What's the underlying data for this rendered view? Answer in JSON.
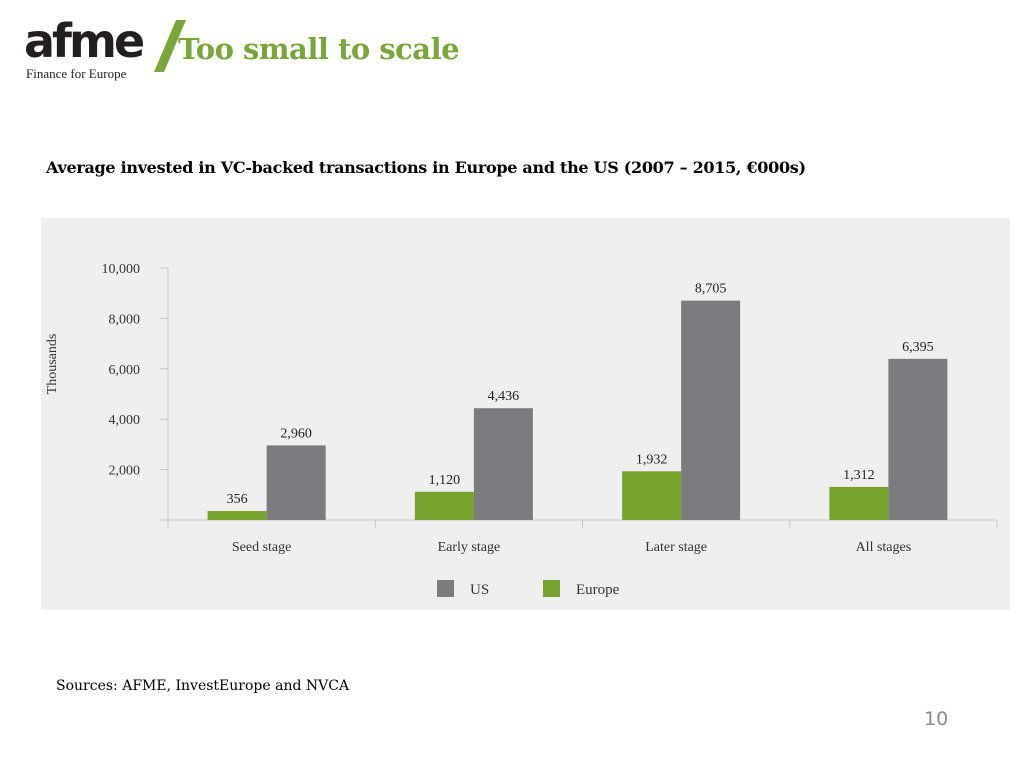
{
  "header": {
    "logo_word": "afme",
    "logo_tagline": "Finance for Europe",
    "title": "Too small to scale"
  },
  "subtitle": "Average invested in VC-backed transactions in Europe and the US (2007 – 2015, €000s)",
  "footer": {
    "source": "Sources: AFME, InvestEurope and NVCA",
    "page_number": "10"
  },
  "colors": {
    "brand_green": "#7aa639",
    "europe_bar": "#77a22d",
    "us_bar": "#7b7c80",
    "logo_dark": "#231f20"
  },
  "chart_data": {
    "type": "bar",
    "title": "Average invested in VC-backed transactions in Europe and the US (2007 – 2015, €000s)",
    "ylabel": "Thousands",
    "xlabel": "",
    "ylim": [
      0,
      10000
    ],
    "yticks": [
      0,
      2000,
      4000,
      6000,
      8000,
      10000
    ],
    "ytick_labels": [
      "",
      "2,000",
      "4,000",
      "6,000",
      "8,000",
      "10,000"
    ],
    "categories": [
      "Seed stage",
      "Early stage",
      "Later stage",
      "All stages"
    ],
    "series": [
      {
        "name": "Europe",
        "values": [
          356,
          1120,
          1932,
          1312
        ],
        "labels": [
          "356",
          "1,120",
          "1,932",
          "1,312"
        ]
      },
      {
        "name": "US",
        "values": [
          2960,
          4436,
          8705,
          6395
        ],
        "labels": [
          "2,960",
          "4,436",
          "8,705",
          "6,395"
        ]
      }
    ],
    "legend": [
      "US",
      "Europe"
    ],
    "legend_position": "bottom",
    "grid": false
  }
}
